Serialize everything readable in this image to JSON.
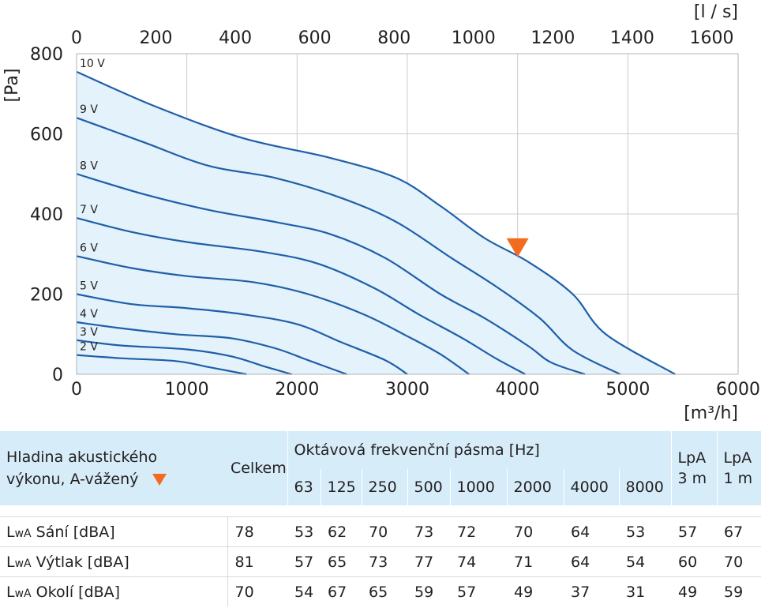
{
  "chart_data": {
    "type": "line",
    "x_unit_bottom": "[m³/h]",
    "x_unit_top": "[l / s]",
    "y_unit": "[Pa]",
    "xlim": [
      0,
      6000
    ],
    "ylim": [
      0,
      800
    ],
    "x_ticks": [
      "0",
      "1000",
      "2000",
      "3000",
      "4000",
      "5000",
      "6000"
    ],
    "x_ticks_top": [
      "0",
      "200",
      "400",
      "600",
      "800",
      "1000",
      "1200",
      "1400",
      "1600"
    ],
    "y_ticks": [
      "0",
      "200",
      "400",
      "600",
      "800"
    ],
    "grid": true,
    "series": [
      {
        "name": "10 V",
        "points": [
          [
            0,
            755
          ],
          [
            700,
            670
          ],
          [
            1500,
            590
          ],
          [
            2300,
            540
          ],
          [
            2900,
            490
          ],
          [
            3300,
            420
          ],
          [
            3700,
            340
          ],
          [
            4100,
            280
          ],
          [
            4500,
            200
          ],
          [
            4800,
            100
          ],
          [
            5430,
            0
          ]
        ]
      },
      {
        "name": "9 V",
        "points": [
          [
            0,
            640
          ],
          [
            600,
            580
          ],
          [
            1200,
            520
          ],
          [
            1800,
            490
          ],
          [
            2400,
            440
          ],
          [
            2900,
            380
          ],
          [
            3400,
            290
          ],
          [
            3800,
            220
          ],
          [
            4200,
            140
          ],
          [
            4500,
            60
          ],
          [
            4930,
            0
          ]
        ]
      },
      {
        "name": "8 V",
        "points": [
          [
            0,
            500
          ],
          [
            600,
            450
          ],
          [
            1200,
            410
          ],
          [
            1800,
            380
          ],
          [
            2300,
            350
          ],
          [
            2800,
            290
          ],
          [
            3300,
            200
          ],
          [
            3700,
            140
          ],
          [
            4100,
            70
          ],
          [
            4300,
            30
          ],
          [
            4610,
            0
          ]
        ]
      },
      {
        "name": "7 V",
        "points": [
          [
            0,
            390
          ],
          [
            500,
            355
          ],
          [
            1000,
            330
          ],
          [
            1700,
            305
          ],
          [
            2200,
            275
          ],
          [
            2700,
            215
          ],
          [
            3100,
            150
          ],
          [
            3500,
            90
          ],
          [
            3800,
            40
          ],
          [
            4070,
            0
          ]
        ]
      },
      {
        "name": "6 V",
        "points": [
          [
            0,
            295
          ],
          [
            500,
            265
          ],
          [
            1000,
            245
          ],
          [
            1600,
            230
          ],
          [
            2100,
            200
          ],
          [
            2600,
            150
          ],
          [
            3000,
            95
          ],
          [
            3300,
            50
          ],
          [
            3560,
            0
          ]
        ]
      },
      {
        "name": "5 V",
        "points": [
          [
            0,
            200
          ],
          [
            500,
            175
          ],
          [
            1000,
            165
          ],
          [
            1500,
            150
          ],
          [
            2000,
            125
          ],
          [
            2400,
            80
          ],
          [
            2800,
            35
          ],
          [
            3000,
            0
          ]
        ]
      },
      {
        "name": "4 V",
        "points": [
          [
            0,
            130
          ],
          [
            400,
            115
          ],
          [
            900,
            100
          ],
          [
            1400,
            90
          ],
          [
            1800,
            65
          ],
          [
            2100,
            35
          ],
          [
            2450,
            0
          ]
        ]
      },
      {
        "name": "3 V",
        "points": [
          [
            0,
            85
          ],
          [
            400,
            72
          ],
          [
            1000,
            62
          ],
          [
            1400,
            45
          ],
          [
            1700,
            20
          ],
          [
            1950,
            0
          ]
        ]
      },
      {
        "name": "2 V",
        "points": [
          [
            0,
            48
          ],
          [
            400,
            40
          ],
          [
            900,
            33
          ],
          [
            1200,
            18
          ],
          [
            1540,
            0
          ]
        ]
      }
    ],
    "operating_point": {
      "x": 4000,
      "y": 300,
      "color": "#f26b21"
    },
    "colors": {
      "curve": "#1f5fa8",
      "area": "#e3f2fb",
      "grid": "#cccccc",
      "marker": "#f26b21"
    }
  },
  "table": {
    "title_line1": "Hladina akustického",
    "title_line2": "výkonu, A-vážený",
    "celkem": "Celkem",
    "octave_title": "Oktávová frekvenční pásma [Hz]",
    "freqs": [
      "63",
      "125",
      "250",
      "500",
      "1000",
      "2000",
      "4000",
      "8000"
    ],
    "lpa3_line1": "LpA",
    "lpa3_line2": "3 m",
    "lpa1_line1": "LpA",
    "lpa1_line2": "1 m",
    "header_bg": "#d6edf9",
    "rows": [
      {
        "l": "L",
        "sub": "wA",
        "label": " Sání [dBA]",
        "celkem": "78",
        "bands": [
          "53",
          "62",
          "70",
          "73",
          "72",
          "70",
          "64",
          "53"
        ],
        "lpa3": "57",
        "lpa1": "67"
      },
      {
        "l": "L",
        "sub": "wA",
        "label": " Výtlak [dBA]",
        "celkem": "81",
        "bands": [
          "57",
          "65",
          "73",
          "77",
          "74",
          "71",
          "64",
          "54"
        ],
        "lpa3": "60",
        "lpa1": "70"
      },
      {
        "l": "L",
        "sub": "wA",
        "label": " Okolí [dBA]",
        "celkem": "70",
        "bands": [
          "54",
          "67",
          "65",
          "59",
          "57",
          "49",
          "37",
          "31"
        ],
        "lpa3": "49",
        "lpa1": "59"
      }
    ]
  }
}
